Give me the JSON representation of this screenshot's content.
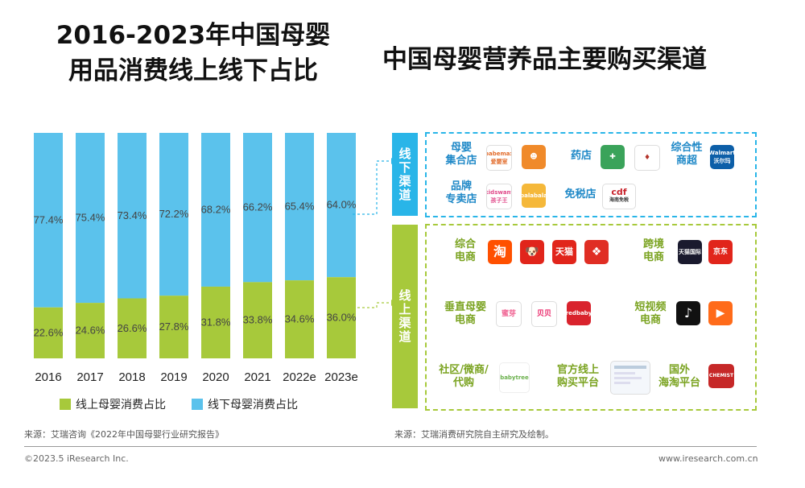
{
  "titles": {
    "left_line1": "2016-2023年中国母婴",
    "left_line2": "用品消费线上线下占比",
    "right": "中国母婴营养品主要购买渠道"
  },
  "chart_data": {
    "type": "bar",
    "stacked": true,
    "percent": true,
    "categories": [
      "2016",
      "2017",
      "2018",
      "2019",
      "2020",
      "2021",
      "2022e",
      "2023e"
    ],
    "series": [
      {
        "name": "线上母婴消费占比",
        "color": "#a7c93b",
        "values": [
          22.6,
          24.6,
          26.6,
          27.8,
          31.8,
          33.8,
          34.6,
          36.0
        ],
        "labels": [
          "22.6%",
          "24.6%",
          "26.6%",
          "27.8%",
          "31.8%",
          "33.8%",
          "34.6%",
          "36.0%"
        ]
      },
      {
        "name": "线下母婴消费占比",
        "color": "#5bc2ec",
        "values": [
          77.4,
          75.4,
          73.4,
          72.2,
          68.2,
          66.2,
          65.4,
          64.0
        ],
        "labels": [
          "77.4%",
          "75.4%",
          "73.4%",
          "72.2%",
          "68.2%",
          "66.2%",
          "65.4%",
          "64.0%"
        ]
      }
    ],
    "ylim": [
      0,
      100
    ]
  },
  "legend": {
    "online": "线上母婴消费占比",
    "offline": "线下母婴消费占比"
  },
  "channels": {
    "offline": {
      "label": "线下渠道",
      "categories": [
        {
          "name_l1": "母婴",
          "name_l2": "集合店",
          "logos": [
            "babemax",
            "爱婴室",
            "babemax-icon"
          ]
        },
        {
          "name_l1": "药店",
          "name_l2": "",
          "logos": [
            "pharmacy-1",
            "pharmacy-2"
          ]
        },
        {
          "name_l1": "综合性",
          "name_l2": "商超",
          "logos": [
            "Walmart"
          ]
        },
        {
          "name_l1": "品牌",
          "name_l2": "专卖店",
          "logos": [
            "kidswant",
            "balabala"
          ]
        },
        {
          "name_l1": "免税店",
          "name_l2": "",
          "logos": [
            "cdf"
          ]
        }
      ]
    },
    "online": {
      "label": "线上渠道",
      "categories": [
        {
          "name_l1": "综合",
          "name_l2": "电商",
          "logos": [
            "淘",
            "JD",
            "天猫",
            "拼"
          ]
        },
        {
          "name_l1": "跨境",
          "name_l2": "电商",
          "logos": [
            "天猫国际",
            "京东"
          ]
        },
        {
          "name_l1": "垂直母婴",
          "name_l2": "电商",
          "logos": [
            "蜜芽",
            "贝贝",
            "redbaby"
          ]
        },
        {
          "name_l1": "短视频",
          "name_l2": "电商",
          "logos": [
            "抖音",
            "快手"
          ]
        },
        {
          "name_l1": "社区/微商/",
          "name_l2": "代购",
          "logos": [
            "babytree"
          ]
        },
        {
          "name_l1": "官方线上",
          "name_l2": "购买平台",
          "logos": [
            "official"
          ]
        },
        {
          "name_l1": "国外",
          "name_l2": "海淘平台",
          "logos": [
            "CHEMIST"
          ]
        }
      ]
    }
  },
  "logo_text": {
    "babemax": "babemax\n爱婴室",
    "kidswant": "kidswant\n孩子王",
    "balabala": "balabala",
    "walmart": "Walmart\n沃尔玛",
    "cdf": "cdf",
    "cdf_sub": "海南免税",
    "tao": "淘",
    "tmall": "天猫",
    "tmall_global": "天猫国际",
    "jd": "京东",
    "mia": "蜜芽",
    "beibei": "贝贝",
    "redbaby": "redbaby",
    "babytree": "babytree",
    "chemist": "CHEMIST"
  },
  "sources": {
    "left": "来源：艾瑞咨询《2022年中国母婴行业研究报告》",
    "right": "来源：艾瑞消费研究院自主研究及绘制。"
  },
  "footer": {
    "copyright": "©2023.5 iResearch Inc.",
    "url": "www.iresearch.com.cn"
  }
}
